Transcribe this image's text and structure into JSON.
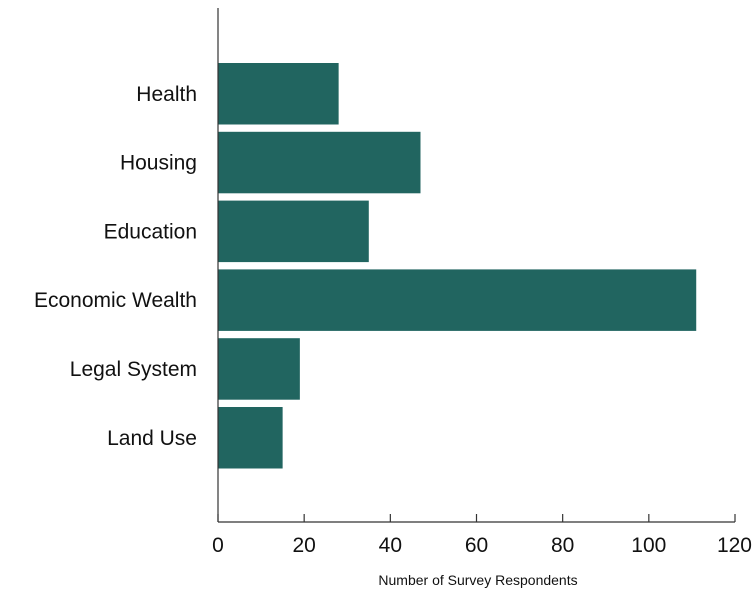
{
  "chart_data": {
    "type": "bar",
    "orientation": "horizontal",
    "categories": [
      "Health",
      "Housing",
      "Education",
      "Economic Wealth",
      "Legal System",
      "Land Use"
    ],
    "values": [
      28,
      47,
      35,
      111,
      19,
      15
    ],
    "xlabel": "Number of Survey Respondents",
    "ylabel": "",
    "xlim": [
      0,
      120
    ],
    "xticks": [
      0,
      20,
      40,
      60,
      80,
      100,
      120
    ],
    "grid": false,
    "bar_color": "#216560"
  }
}
